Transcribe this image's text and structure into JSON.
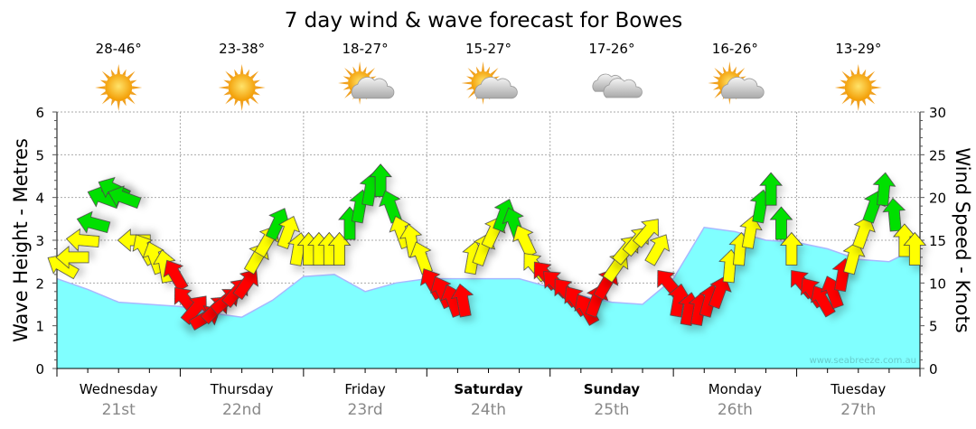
{
  "chart_data": {
    "type": "area",
    "title": "7 day wind & wave forecast for Bowes",
    "ylabel_left": "Wave Height - Metres",
    "ylabel_right": "Wind Speed - Knots",
    "ylim_left": [
      0,
      6
    ],
    "ylim_right": [
      0,
      30
    ],
    "yticks_left": [
      "0",
      "1",
      "2",
      "3",
      "4",
      "5",
      "6"
    ],
    "yticks_right": [
      "0",
      "5",
      "10",
      "15",
      "20",
      "25",
      "30"
    ],
    "grid": true,
    "watermark": "www.seabreeze.com.au",
    "days": [
      {
        "name": "Wednesday",
        "date": "21st",
        "temp": "28-46°",
        "weather": "sun",
        "bold": false
      },
      {
        "name": "Thursday",
        "date": "22nd",
        "temp": "23-38°",
        "weather": "sun",
        "bold": false
      },
      {
        "name": "Friday",
        "date": "23rd",
        "temp": "18-27°",
        "weather": "sun-cloud",
        "bold": false
      },
      {
        "name": "Saturday",
        "date": "24th",
        "temp": "15-27°",
        "weather": "sun-cloud",
        "bold": true
      },
      {
        "name": "Sunday",
        "date": "25th",
        "temp": "17-26°",
        "weather": "cloud",
        "bold": true
      },
      {
        "name": "Monday",
        "date": "26th",
        "temp": "16-26°",
        "weather": "sun-cloud",
        "bold": false
      },
      {
        "name": "Tuesday",
        "date": "27th",
        "temp": "13-29°",
        "weather": "sun",
        "bold": false
      }
    ],
    "wave_height_m_6hourly": [
      2.1,
      1.85,
      1.55,
      1.5,
      1.45,
      1.3,
      1.2,
      1.6,
      2.15,
      2.2,
      1.8,
      2.0,
      2.1,
      2.1,
      2.1,
      2.1,
      1.9,
      1.7,
      1.55,
      1.5,
      2.1,
      3.3,
      3.2,
      3.0,
      2.95,
      2.8,
      2.55,
      2.5,
      2.85
    ],
    "wind_knots_2hourly": [
      12,
      13,
      15,
      17,
      20,
      21,
      20,
      15,
      14,
      13,
      12,
      11,
      8,
      7,
      6,
      7,
      8,
      9,
      10,
      13,
      15,
      17,
      16,
      14,
      14,
      14,
      14,
      14,
      17,
      19,
      21,
      22,
      19,
      16,
      15,
      13,
      10,
      9,
      8,
      8,
      13,
      14,
      16,
      18,
      17,
      15,
      12,
      11,
      10,
      9,
      8,
      7,
      8,
      10,
      12,
      14,
      15,
      16,
      14,
      10,
      8,
      7,
      7,
      8,
      9,
      12,
      14,
      16,
      19,
      21,
      17,
      14,
      10,
      9,
      8,
      9,
      11,
      13,
      16,
      19,
      21,
      18,
      15,
      14
    ],
    "wind_dir_deg_2hourly": [
      300,
      270,
      275,
      285,
      290,
      295,
      290,
      270,
      330,
      340,
      350,
      330,
      320,
      40,
      60,
      45,
      50,
      40,
      35,
      30,
      30,
      25,
      20,
      10,
      0,
      0,
      0,
      0,
      0,
      10,
      10,
      0,
      340,
      340,
      350,
      340,
      330,
      335,
      340,
      350,
      10,
      20,
      25,
      20,
      340,
      335,
      320,
      320,
      315,
      320,
      325,
      330,
      20,
      30,
      35,
      40,
      40,
      40,
      30,
      320,
      10,
      10,
      10,
      15,
      20,
      5,
      5,
      10,
      10,
      0,
      0,
      0,
      320,
      325,
      330,
      340,
      10,
      15,
      20,
      20,
      5,
      355,
      0,
      0
    ],
    "wind_colors": {
      "light": "#ff0000",
      "moderate": "#ffff00",
      "strong": "#00e000"
    },
    "wave_color": "#80ffff"
  }
}
